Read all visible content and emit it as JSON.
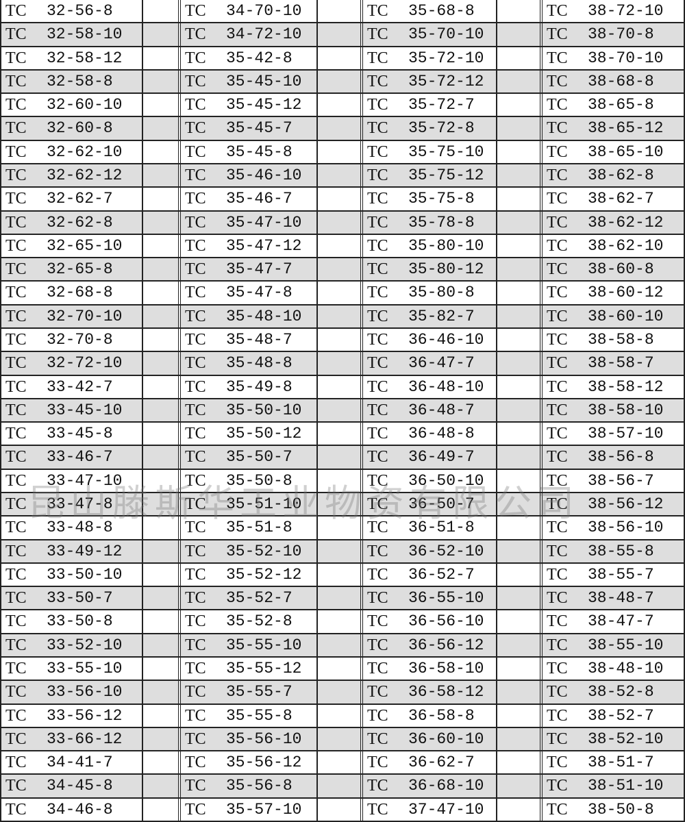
{
  "prefix": "TC",
  "watermark": "昆山滕斯华工业物资有限公司",
  "colors": {
    "stripe": "#dedede",
    "border": "#222222"
  },
  "columns": [
    [
      "32-56-8",
      "32-58-10",
      "32-58-12",
      "32-58-8",
      "32-60-10",
      "32-60-8",
      "32-62-10",
      "32-62-12",
      "32-62-7",
      "32-62-8",
      "32-65-10",
      "32-65-8",
      "32-68-8",
      "32-70-10",
      "32-70-8",
      "32-72-10",
      "33-42-7",
      "33-45-10",
      "33-45-8",
      "33-46-7",
      "33-47-10",
      "33-47-8",
      "33-48-8",
      "33-49-12",
      "33-50-10",
      "33-50-7",
      "33-50-8",
      "33-52-10",
      "33-55-10",
      "33-56-10",
      "33-56-12",
      "33-66-12",
      "34-41-7",
      "34-45-8",
      "34-46-8"
    ],
    [
      "34-70-10",
      "34-72-10",
      "35-42-8",
      "35-45-10",
      "35-45-12",
      "35-45-7",
      "35-45-8",
      "35-46-10",
      "35-46-7",
      "35-47-10",
      "35-47-12",
      "35-47-7",
      "35-47-8",
      "35-48-10",
      "35-48-7",
      "35-48-8",
      "35-49-8",
      "35-50-10",
      "35-50-12",
      "35-50-7",
      "35-50-8",
      "35-51-10",
      "35-51-8",
      "35-52-10",
      "35-52-12",
      "35-52-7",
      "35-52-8",
      "35-55-10",
      "35-55-12",
      "35-55-7",
      "35-55-8",
      "35-56-10",
      "35-56-12",
      "35-56-8",
      "35-57-10"
    ],
    [
      "35-68-8",
      "35-70-10",
      "35-72-10",
      "35-72-12",
      "35-72-7",
      "35-72-8",
      "35-75-10",
      "35-75-12",
      "35-75-8",
      "35-78-8",
      "35-80-10",
      "35-80-12",
      "35-80-8",
      "35-82-7",
      "36-46-10",
      "36-47-7",
      "36-48-10",
      "36-48-7",
      "36-48-8",
      "36-49-7",
      "36-50-10",
      "36-50-7",
      "36-51-8",
      "36-52-10",
      "36-52-7",
      "36-55-10",
      "36-56-10",
      "36-56-12",
      "36-58-10",
      "36-58-12",
      "36-58-8",
      "36-60-10",
      "36-62-7",
      "36-68-10",
      "37-47-10"
    ],
    [
      "38-72-10",
      "38-70-8",
      "38-70-10",
      "38-68-8",
      "38-65-8",
      "38-65-12",
      "38-65-10",
      "38-62-8",
      "38-62-7",
      "38-62-12",
      "38-62-10",
      "38-60-8",
      "38-60-12",
      "38-60-10",
      "38-58-8",
      "38-58-7",
      "38-58-12",
      "38-58-10",
      "38-57-10",
      "38-56-8",
      "38-56-7",
      "38-56-12",
      "38-56-10",
      "38-55-8",
      "38-55-7",
      "38-48-7",
      "38-47-7",
      "38-55-10",
      "38-48-10",
      "38-52-8",
      "38-52-7",
      "38-52-10",
      "38-51-7",
      "38-51-10",
      "38-50-8"
    ]
  ]
}
